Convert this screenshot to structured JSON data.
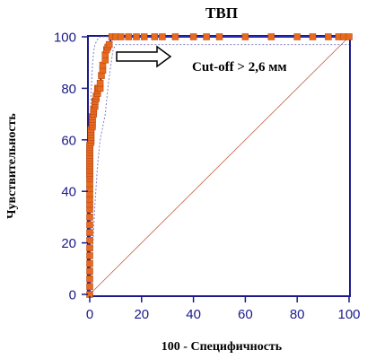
{
  "chart_data": {
    "type": "line",
    "title": "ТВП",
    "xlabel": "100 - Специфичность",
    "ylabel": "Чувствительность",
    "xlim": [
      0,
      100
    ],
    "ylim": [
      0,
      100
    ],
    "x_ticks": [
      0,
      20,
      40,
      60,
      80,
      100
    ],
    "y_ticks": [
      0,
      20,
      40,
      60,
      80,
      100
    ],
    "grid": false,
    "annotation": "Cut-off > 2,6 мм",
    "series": [
      {
        "role": "roc-curve",
        "color": "#e86a1e",
        "line_color": "#2a2ab0",
        "x": [
          0,
          0,
          0,
          0,
          0,
          0,
          0,
          0,
          0,
          0,
          0,
          0,
          0,
          0,
          0,
          0,
          0,
          0,
          0,
          0,
          0,
          0,
          0,
          0,
          0,
          0,
          0,
          0,
          0,
          0,
          0,
          0.5,
          0.5,
          0.5,
          0.5,
          0.5,
          0.5,
          1,
          1,
          1,
          1,
          1,
          1.5,
          1.5,
          1.5,
          2,
          2,
          2,
          2.5,
          2.5,
          3,
          3,
          3,
          3.5,
          4,
          4,
          4.5,
          5,
          5,
          6,
          6,
          6.5,
          7,
          7.5,
          8.5,
          10,
          12,
          15,
          18,
          21,
          25,
          28,
          33,
          40,
          45,
          50,
          60,
          70,
          80,
          86,
          92,
          96,
          98,
          100
        ],
        "y": [
          0,
          3,
          6,
          9,
          12,
          15,
          18,
          21,
          24,
          27,
          30,
          33,
          35,
          37,
          39,
          41,
          43,
          45,
          46,
          47,
          48,
          49,
          50,
          51,
          52,
          53,
          54,
          55,
          56,
          57,
          58,
          59,
          60,
          61,
          62,
          63,
          64,
          65,
          66,
          67,
          68,
          69,
          70,
          71,
          72,
          73,
          74,
          75,
          76,
          77,
          78,
          79,
          80,
          80,
          80,
          82,
          85,
          87,
          89,
          91,
          93,
          95,
          96,
          97,
          100,
          100,
          100,
          100,
          100,
          100,
          100,
          100,
          100,
          100,
          100,
          100,
          100,
          100,
          100,
          100,
          100,
          100,
          100,
          100
        ]
      },
      {
        "role": "confidence-bound-upper",
        "color": "#8080c8",
        "x": [
          0,
          0,
          0.5,
          1,
          1.5,
          2,
          3,
          4,
          6,
          8,
          100
        ],
        "y": [
          0,
          60,
          78,
          88,
          94,
          97,
          99,
          100,
          100,
          100,
          100
        ]
      },
      {
        "role": "confidence-bound-lower",
        "color": "#8080c8",
        "x": [
          0,
          0.5,
          1,
          2,
          3,
          4,
          5,
          6,
          7,
          8,
          9,
          10,
          100
        ],
        "y": [
          0,
          5,
          15,
          35,
          50,
          60,
          65,
          70,
          80,
          88,
          95,
          97,
          97
        ]
      },
      {
        "role": "diagonal-reference",
        "color": "#c06040",
        "x": [
          0,
          100
        ],
        "y": [
          0,
          100
        ]
      }
    ]
  }
}
